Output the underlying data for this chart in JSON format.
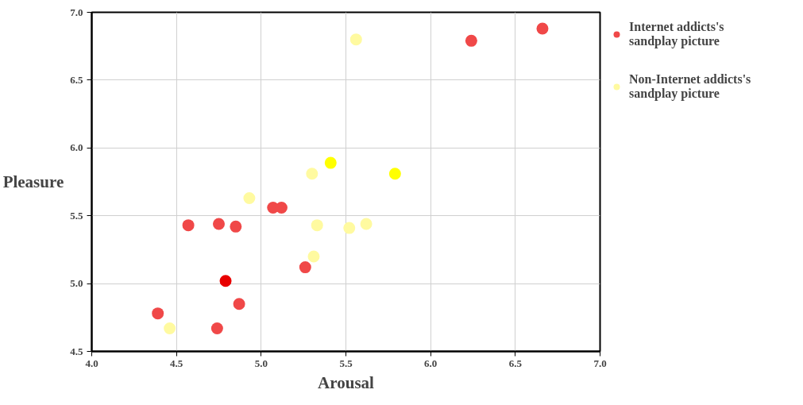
{
  "chart_data": {
    "type": "scatter",
    "xlabel": "Arousal",
    "ylabel": "Pleasure",
    "xlim": [
      4.0,
      7.0
    ],
    "ylim": [
      4.5,
      7.0
    ],
    "xticks": [
      {
        "value": 4.0,
        "label": "4.0"
      },
      {
        "value": 4.5,
        "label": "4.5"
      },
      {
        "value": 5.0,
        "label": "5.0"
      },
      {
        "value": 5.5,
        "label": "5.5"
      },
      {
        "value": 6.0,
        "label": "6.0"
      },
      {
        "value": 6.5,
        "label": "6.5"
      },
      {
        "value": 7.0,
        "label": "7.0"
      }
    ],
    "yticks": [
      {
        "value": 4.5,
        "label": "4.5"
      },
      {
        "value": 5.0,
        "label": "5.0"
      },
      {
        "value": 5.5,
        "label": "5.5"
      },
      {
        "value": 6.0,
        "label": "6.0"
      },
      {
        "value": 6.5,
        "label": "6.5"
      },
      {
        "value": 7.0,
        "label": "7.0"
      }
    ],
    "grid": true,
    "legend": "top right",
    "marker": "circle",
    "series": [
      {
        "name": "Internet addicts's sandplay picture",
        "color": "#f04848",
        "x": [
          4.39,
          4.57,
          4.75,
          4.85,
          4.79,
          4.74,
          4.87,
          5.07,
          5.12,
          5.26,
          6.24,
          6.66
        ],
        "values": [
          4.78,
          5.43,
          5.44,
          5.42,
          5.02,
          4.67,
          4.85,
          5.56,
          5.56,
          5.12,
          6.79,
          6.88
        ],
        "colors": [
          "#f04848",
          "#f04848",
          "#f04848",
          "#f04848",
          "#e80000",
          "#f04848",
          "#f04848",
          "#f04848",
          "#f04848",
          "#f04848",
          "#f04848",
          "#f04848"
        ]
      },
      {
        "name": "Non-Internet addicts's sandplay picture",
        "color": "#fffaa0",
        "x": [
          4.46,
          4.93,
          5.3,
          5.41,
          5.33,
          5.31,
          5.52,
          5.62,
          5.79,
          5.56
        ],
        "values": [
          4.67,
          5.63,
          5.81,
          5.89,
          5.43,
          5.2,
          5.41,
          5.44,
          5.81,
          6.8
        ],
        "colors": [
          "#fffaa0",
          "#fffaa0",
          "#fffaa0",
          "#ffff00",
          "#fffaa0",
          "#fffaa0",
          "#fffaa0",
          "#fffaa0",
          "#ffff00",
          "#fffaa0"
        ]
      }
    ]
  }
}
